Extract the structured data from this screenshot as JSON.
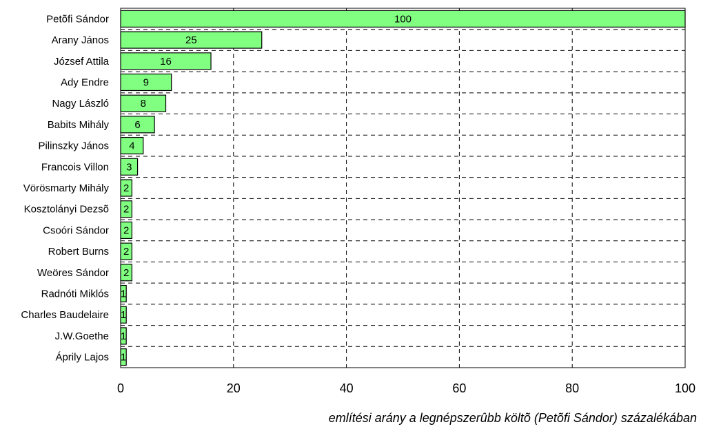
{
  "chart_data": {
    "type": "bar",
    "orientation": "horizontal",
    "categories": [
      "Petõfi Sándor",
      "Arany János",
      "József Attila",
      "Ady Endre",
      "Nagy László",
      "Babits Mihály",
      "Pilinszky János",
      "Francois Villon",
      "Vörösmarty Mihály",
      "Kosztolányi Dezsõ",
      "Csoóri Sándor",
      "Robert Burns",
      "Weöres Sándor",
      "Radnóti Miklós",
      "Charles Baudelaire",
      "J.W.Goethe",
      "Áprily Lajos"
    ],
    "values": [
      100,
      25,
      16,
      9,
      8,
      6,
      4,
      3,
      2,
      2,
      2,
      2,
      2,
      1,
      1,
      1,
      1
    ],
    "data_labels": [
      "100",
      "25",
      "16",
      "9",
      "8",
      "6",
      "4",
      "3",
      "2",
      "2",
      "2",
      "2",
      "2",
      "1",
      "1",
      "1",
      "1"
    ],
    "xlabel": "említési arány a legnépszerûbb költõ (Petõfi Sándor) százalékában",
    "xlim": [
      0,
      100
    ],
    "xticks": [
      0,
      20,
      40,
      60,
      80,
      100
    ],
    "xtick_labels": [
      "0",
      "20",
      "40",
      "60",
      "80",
      "100"
    ],
    "grid": true,
    "bar_color": "#80ff80",
    "bar_edge_color": "#000000"
  }
}
